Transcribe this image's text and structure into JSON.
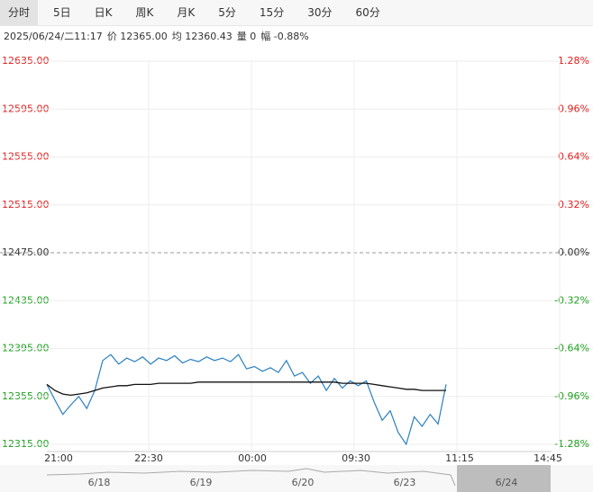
{
  "tabs": [
    "分时",
    "5日",
    "日K",
    "周K",
    "月K",
    "5分",
    "15分",
    "30分",
    "60分"
  ],
  "selected_tab": 0,
  "info": [
    "2025/06/24/二11:17",
    "价 12365.00",
    "均 12360.43",
    "量 0",
    "幅 -0.88%"
  ],
  "chart_data": {
    "type": "line",
    "ylim": [
      12315,
      12635
    ],
    "yticks": [
      {
        "value": 12635,
        "label": "12635.00"
      },
      {
        "value": 12595,
        "label": "12595.00"
      },
      {
        "value": 12555,
        "label": "12555.00"
      },
      {
        "value": 12515,
        "label": "12515.00"
      },
      {
        "value": 12475,
        "label": "12475.00"
      },
      {
        "value": 12435,
        "label": "12435.00"
      },
      {
        "value": 12395,
        "label": "12395.00"
      },
      {
        "value": 12355,
        "label": "12355.00"
      },
      {
        "value": 12315,
        "label": "12315.00"
      }
    ],
    "y2lim": [
      -1.28,
      1.28
    ],
    "y2ticks": [
      {
        "value": 1.28,
        "label": "1.28%"
      },
      {
        "value": 0.96,
        "label": "0.96%"
      },
      {
        "value": 0.64,
        "label": "0.64%"
      },
      {
        "value": 0.32,
        "label": "0.32%"
      },
      {
        "value": 0,
        "label": "0.00%"
      },
      {
        "value": -0.32,
        "label": "-0.32%"
      },
      {
        "value": -0.64,
        "label": "-0.64%"
      },
      {
        "value": -0.96,
        "label": "-0.96%"
      },
      {
        "value": -1.28,
        "label": "-1.28%"
      }
    ],
    "base": 12475,
    "up_color": "#e02020",
    "down_color": "#20a020",
    "flat_color": "#333333",
    "x_labels": [
      "21:00",
      "22:30",
      "00:00",
      "09:30",
      "11:15",
      "14:45"
    ],
    "nav_dates": [
      "6/18",
      "6/19",
      "6/20",
      "6/23",
      "6/24"
    ],
    "series": [
      {
        "color": "#2a7fc1",
        "values": [
          12365,
          12352,
          12340,
          12348,
          12355,
          12345,
          12360,
          12385,
          12390,
          12382,
          12387,
          12384,
          12388,
          12382,
          12387,
          12385,
          12389,
          12383,
          12386,
          12384,
          12388,
          12385,
          12387,
          12384,
          12390,
          12378,
          12380,
          12376,
          12379,
          12375,
          12385,
          12372,
          12375,
          12366,
          12372,
          12360,
          12370,
          12362,
          12368,
          12364,
          12368,
          12350,
          12335,
          12343,
          12325,
          12315,
          12338,
          12330,
          12340,
          12332,
          12365
        ]
      },
      {
        "color": "#111111",
        "values": [
          12365,
          12360,
          12357,
          12356,
          12357,
          12358,
          12360,
          12362,
          12363,
          12364,
          12364,
          12365,
          12365,
          12365,
          12366,
          12366,
          12366,
          12366,
          12366,
          12367,
          12367,
          12367,
          12367,
          12367,
          12367,
          12367,
          12367,
          12367,
          12367,
          12367,
          12367,
          12367,
          12367,
          12367,
          12367,
          12367,
          12367,
          12366,
          12366,
          12366,
          12366,
          12365,
          12364,
          12363,
          12362,
          12361,
          12361,
          12360,
          12360,
          12360,
          12360
        ]
      }
    ]
  }
}
